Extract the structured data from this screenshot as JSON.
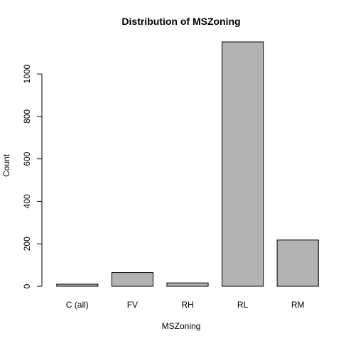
{
  "chart_data": {
    "type": "bar",
    "title": "Distribution of MSZoning",
    "xlabel": "MSZoning",
    "ylabel": "Count",
    "categories": [
      "C (all)",
      "FV",
      "RH",
      "RL",
      "RM"
    ],
    "values": [
      10,
      65,
      16,
      1151,
      218
    ],
    "ylim": [
      0,
      1151
    ],
    "yticks": [
      0,
      200,
      400,
      600,
      800,
      1000
    ],
    "bar_color": "#b3b3b3",
    "grid": false
  }
}
